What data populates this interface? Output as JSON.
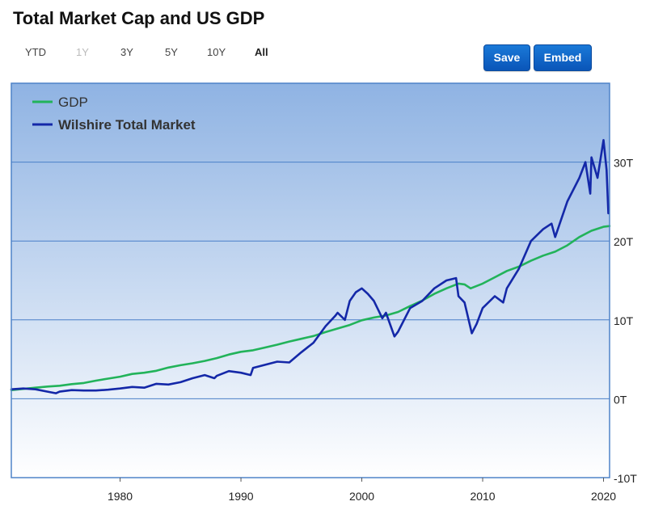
{
  "header": {
    "title": "Total Market Cap and US GDP",
    "ranges": [
      {
        "label": "YTD",
        "state": "normal"
      },
      {
        "label": "1Y",
        "state": "disabled"
      },
      {
        "label": "3Y",
        "state": "normal"
      },
      {
        "label": "5Y",
        "state": "normal"
      },
      {
        "label": "10Y",
        "state": "normal"
      },
      {
        "label": "All",
        "state": "active"
      }
    ],
    "save_label": "Save",
    "embed_label": "Embed"
  },
  "colors": {
    "gdp": "#22b35a",
    "market": "#1428a8",
    "bg_top": "#8fb3e3",
    "bg_bottom": "#ffffff",
    "grid": "#4a7fc8",
    "frame": "#4f83c8"
  },
  "chart_data": {
    "type": "line",
    "title": "Total Market Cap and US GDP",
    "xlim": [
      1971,
      2020.5
    ],
    "ylim": [
      -10,
      40
    ],
    "x_ticks": [
      1980,
      1990,
      2000,
      2010,
      2020
    ],
    "y_ticks": [
      -10,
      0,
      10,
      20,
      30
    ],
    "y_tick_labels": [
      "-10T",
      "0T",
      "10T",
      "20T",
      "30T"
    ],
    "grid": true,
    "legend_position": "top-left",
    "series": [
      {
        "name": "GDP",
        "x": [
          1971,
          1972,
          1973,
          1974,
          1975,
          1976,
          1977,
          1978,
          1979,
          1980,
          1981,
          1982,
          1983,
          1984,
          1985,
          1986,
          1987,
          1988,
          1989,
          1990,
          1991,
          1992,
          1993,
          1994,
          1995,
          1996,
          1997,
          1998,
          1999,
          2000,
          2001,
          2002,
          2003,
          2004,
          2005,
          2006,
          2007,
          2008,
          2008.5,
          2009,
          2010,
          2011,
          2012,
          2013,
          2014,
          2015,
          2016,
          2017,
          2018,
          2019,
          2020,
          2020.5
        ],
        "y": [
          1.1,
          1.25,
          1.4,
          1.55,
          1.65,
          1.85,
          2.0,
          2.3,
          2.55,
          2.8,
          3.15,
          3.3,
          3.55,
          3.95,
          4.25,
          4.5,
          4.8,
          5.15,
          5.6,
          5.95,
          6.15,
          6.5,
          6.85,
          7.25,
          7.6,
          7.95,
          8.45,
          8.9,
          9.35,
          9.95,
          10.3,
          10.55,
          11.0,
          11.75,
          12.45,
          13.3,
          14.0,
          14.6,
          14.5,
          14.0,
          14.6,
          15.4,
          16.2,
          16.75,
          17.5,
          18.15,
          18.65,
          19.45,
          20.5,
          21.3,
          21.8,
          21.9
        ]
      },
      {
        "name": "Wilshire Total Market",
        "x": [
          1971,
          1972,
          1973,
          1974,
          1974.7,
          1975,
          1976,
          1977,
          1978,
          1979,
          1980,
          1981,
          1982,
          1983,
          1984,
          1985,
          1986,
          1987,
          1987.8,
          1988,
          1989,
          1990,
          1990.8,
          1991,
          1992,
          1993,
          1994,
          1995,
          1996,
          1997,
          1997.8,
          1998,
          1998.6,
          1999,
          1999.5,
          2000,
          2000.5,
          2001,
          2001.7,
          2002,
          2002.7,
          2003,
          2004,
          2005,
          2006,
          2007,
          2007.8,
          2008,
          2008.5,
          2009.1,
          2009.5,
          2010,
          2011,
          2011.7,
          2012,
          2013,
          2014,
          2015,
          2015.7,
          2016,
          2017,
          2018,
          2018.5,
          2018.9,
          2019,
          2019.5,
          2020,
          2020.25,
          2020.4
        ],
        "y": [
          1.2,
          1.3,
          1.2,
          0.9,
          0.7,
          0.9,
          1.1,
          1.05,
          1.05,
          1.15,
          1.3,
          1.5,
          1.4,
          1.9,
          1.8,
          2.1,
          2.6,
          3.0,
          2.6,
          2.9,
          3.5,
          3.3,
          3.0,
          3.9,
          4.3,
          4.7,
          4.6,
          5.9,
          7.1,
          9.2,
          10.5,
          10.9,
          10.0,
          12.4,
          13.5,
          14.0,
          13.3,
          12.4,
          10.2,
          10.9,
          7.9,
          8.5,
          11.5,
          12.4,
          14.0,
          15.0,
          15.3,
          13.0,
          12.2,
          8.3,
          9.5,
          11.5,
          13.0,
          12.2,
          14.0,
          16.5,
          20.0,
          21.5,
          22.2,
          20.5,
          25.0,
          28.0,
          30.0,
          26.0,
          30.6,
          28.0,
          32.8,
          29.0,
          23.5
        ]
      }
    ]
  }
}
